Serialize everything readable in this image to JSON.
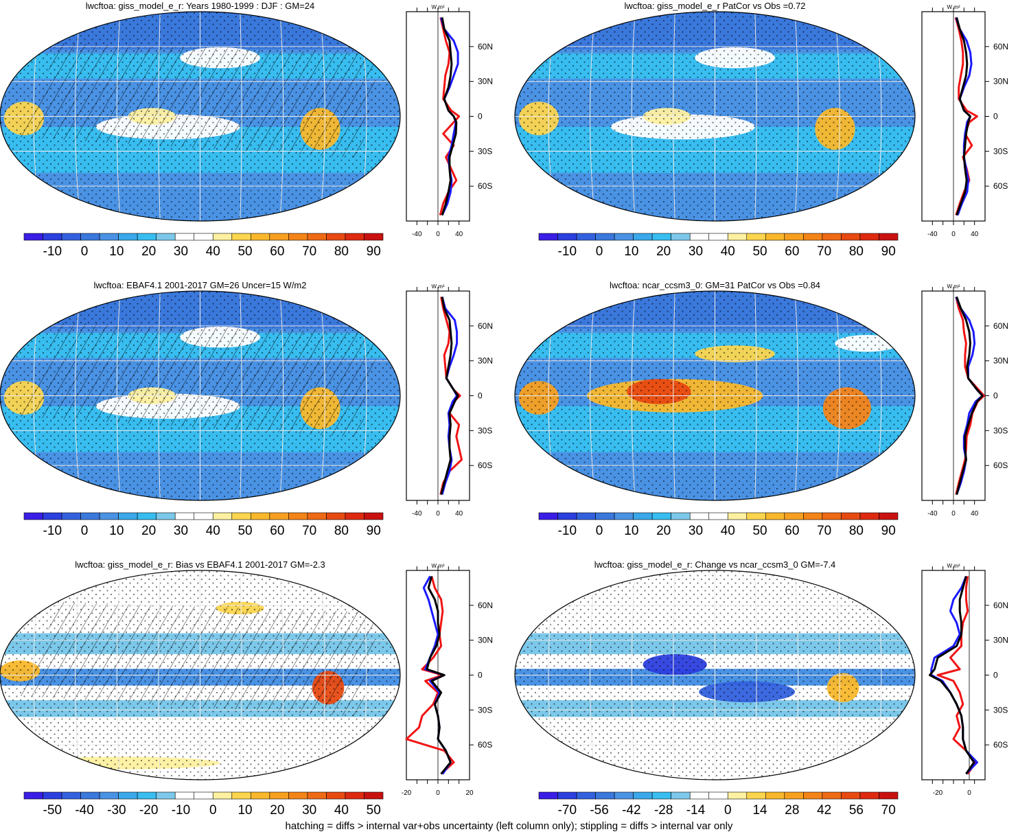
{
  "caption": "hatching = diffs > internal var+obs uncertainty (left column only); stippling = diffs > internal var only",
  "colors": {
    "zonal_black": "#000000",
    "zonal_blue": "#1a1aff",
    "zonal_red": "#f01414",
    "full_scale": [
      "#3a1ee6",
      "#2c3fdf",
      "#3361de",
      "#3a78dc",
      "#4a92e4",
      "#3aa8ea",
      "#38bdf0",
      "#7cc8ea",
      "#ffffff",
      "#ffffff",
      "#fdf0a0",
      "#fbd54e",
      "#f9b82b",
      "#f7a020",
      "#f48418",
      "#ef6a15",
      "#e84a12",
      "#de2a10",
      "#c91210"
    ]
  },
  "chart_data": [
    {
      "id": "p1",
      "type": "heatmap",
      "title": "lwcftoa: giss_model_e_r: Years 1980-1999 : DJF : GM=24",
      "colorbar_labels": [
        "-10",
        "0",
        "10",
        "20",
        "30",
        "40",
        "50",
        "60",
        "70",
        "80",
        "90"
      ],
      "hatching": true,
      "profile": {
        "y_ticks": [
          "60N",
          "30N",
          "0",
          "30S",
          "60S"
        ],
        "x_ticks": [
          "-40",
          "0",
          "40"
        ],
        "xlim": [
          -60,
          60
        ],
        "unit": "W m²",
        "lat": [
          85,
          75,
          65,
          55,
          45,
          35,
          25,
          15,
          5,
          0,
          -5,
          -15,
          -25,
          -35,
          -45,
          -55,
          -65,
          -75,
          -85
        ],
        "series": [
          {
            "color": "black",
            "values": [
              8,
              12,
              22,
              24,
              26,
              24,
              20,
              12,
              20,
              30,
              35,
              34,
              28,
              22,
              22,
              24,
              20,
              15,
              8
            ]
          },
          {
            "color": "blue",
            "values": [
              6,
              12,
              30,
              38,
              38,
              30,
              22,
              12,
              20,
              30,
              34,
              30,
              26,
              20,
              22,
              26,
              24,
              18,
              8
            ]
          },
          {
            "color": "red",
            "values": [
              5,
              10,
              15,
              22,
              20,
              14,
              12,
              10,
              25,
              40,
              30,
              10,
              30,
              15,
              25,
              35,
              20,
              10,
              4
            ]
          }
        ]
      }
    },
    {
      "id": "p2",
      "type": "heatmap",
      "title": "lwcftoa: giss_model_e_r PatCor vs Obs =0.72",
      "colorbar_labels": [
        "-10",
        "0",
        "10",
        "20",
        "30",
        "40",
        "50",
        "60",
        "70",
        "80",
        "90"
      ],
      "hatching": false,
      "profile": {
        "y_ticks": [
          "60N",
          "30N",
          "0",
          "30S",
          "60S"
        ],
        "x_ticks": [
          "-40",
          "0",
          "40"
        ],
        "xlim": [
          -60,
          60
        ],
        "unit": "W m²",
        "lat": [
          85,
          75,
          65,
          55,
          45,
          35,
          25,
          15,
          5,
          0,
          -5,
          -15,
          -25,
          -35,
          -45,
          -55,
          -65,
          -75,
          -85
        ],
        "series": [
          {
            "color": "black",
            "values": [
              6,
              12,
              20,
              24,
              26,
              24,
              18,
              12,
              20,
              32,
              28,
              24,
              22,
              20,
              22,
              25,
              22,
              14,
              6
            ]
          },
          {
            "color": "blue",
            "values": [
              5,
              12,
              25,
              32,
              34,
              30,
              20,
              12,
              20,
              32,
              26,
              22,
              20,
              20,
              24,
              28,
              26,
              16,
              8
            ]
          },
          {
            "color": "red",
            "values": [
              4,
              10,
              15,
              18,
              18,
              14,
              10,
              10,
              25,
              45,
              30,
              22,
              35,
              18,
              25,
              30,
              20,
              12,
              5
            ]
          }
        ]
      }
    },
    {
      "id": "p3",
      "type": "heatmap",
      "title": "lwcftoa: EBAF4.1 2001-2017 GM=26 Uncer=15 W/m2",
      "colorbar_labels": [
        "-10",
        "0",
        "10",
        "20",
        "30",
        "40",
        "50",
        "60",
        "70",
        "80",
        "90"
      ],
      "hatching": true,
      "profile": {
        "y_ticks": [
          "60N",
          "30N",
          "0",
          "30S",
          "60S"
        ],
        "x_ticks": [
          "-40",
          "0",
          "40"
        ],
        "xlim": [
          -60,
          60
        ],
        "unit": "W m²",
        "lat": [
          85,
          75,
          65,
          55,
          45,
          35,
          25,
          15,
          5,
          0,
          -5,
          -15,
          -25,
          -35,
          -45,
          -55,
          -65,
          -75,
          -85
        ],
        "series": [
          {
            "color": "black",
            "values": [
              8,
              12,
              22,
              24,
              26,
              24,
              20,
              16,
              30,
              38,
              32,
              22,
              24,
              22,
              22,
              24,
              18,
              12,
              6
            ]
          },
          {
            "color": "blue",
            "values": [
              8,
              14,
              32,
              36,
              36,
              30,
              22,
              16,
              30,
              36,
              28,
              20,
              22,
              20,
              22,
              26,
              22,
              14,
              8
            ]
          },
          {
            "color": "red",
            "values": [
              6,
              10,
              16,
              22,
              20,
              12,
              14,
              16,
              30,
              42,
              30,
              22,
              40,
              35,
              40,
              45,
              22,
              10,
              5
            ]
          }
        ]
      }
    },
    {
      "id": "p4",
      "type": "heatmap",
      "title": "lwcftoa: ncar_ccsm3_0: GM=31 PatCor vs Obs =0.84",
      "colorbar_labels": [
        "-10",
        "0",
        "10",
        "20",
        "30",
        "40",
        "50",
        "60",
        "70",
        "80",
        "90"
      ],
      "hatching": false,
      "profile": {
        "y_ticks": [
          "60N",
          "30N",
          "0",
          "30S",
          "60S"
        ],
        "x_ticks": [
          "-40",
          "0",
          "40"
        ],
        "xlim": [
          -60,
          60
        ],
        "unit": "W m²",
        "lat": [
          85,
          75,
          65,
          55,
          45,
          35,
          25,
          15,
          5,
          0,
          -5,
          -15,
          -25,
          -35,
          -45,
          -55,
          -65,
          -75,
          -85
        ],
        "series": [
          {
            "color": "black",
            "values": [
              6,
              14,
              24,
              30,
              32,
              30,
              26,
              28,
              45,
              55,
              45,
              35,
              28,
              22,
              22,
              24,
              18,
              12,
              6
            ]
          },
          {
            "color": "blue",
            "values": [
              5,
              14,
              30,
              38,
              40,
              36,
              28,
              28,
              45,
              55,
              42,
              30,
              26,
              20,
              20,
              24,
              20,
              14,
              6
            ]
          },
          {
            "color": "red",
            "values": [
              5,
              10,
              18,
              20,
              24,
              22,
              22,
              28,
              48,
              58,
              46,
              36,
              32,
              25,
              24,
              22,
              16,
              10,
              5
            ]
          }
        ]
      }
    },
    {
      "id": "p5",
      "type": "heatmap",
      "title": "lwcftoa: giss_model_e_r: Bias vs EBAF4.1 2001-2017 GM=-2.3",
      "colorbar_labels": [
        "-50",
        "-40",
        "-30",
        "-20",
        "-10",
        "0",
        "10",
        "20",
        "30",
        "40",
        "50"
      ],
      "hatching": true,
      "profile": {
        "y_ticks": [
          "60N",
          "30N",
          "0",
          "30S",
          "60S"
        ],
        "x_ticks": [
          "-20",
          "0",
          "20"
        ],
        "xlim": [
          -20,
          20
        ],
        "unit": "W m²",
        "lat": [
          85,
          75,
          65,
          55,
          45,
          35,
          25,
          15,
          5,
          0,
          -5,
          -15,
          -25,
          -35,
          -45,
          -55,
          -65,
          -75,
          -85
        ],
        "series": [
          {
            "color": "black",
            "values": [
              -4,
              -6,
              -2,
              0,
              0,
              1,
              -1,
              -5,
              -7,
              4,
              -4,
              2,
              -2,
              0,
              1,
              0,
              5,
              8,
              2
            ]
          },
          {
            "color": "blue",
            "values": [
              -5,
              -9,
              -6,
              -4,
              -2,
              0,
              -2,
              -5,
              -8,
              4,
              -5,
              1,
              -2,
              0,
              1,
              0,
              5,
              8,
              3
            ]
          },
          {
            "color": "red",
            "values": [
              -4,
              -2,
              2,
              3,
              2,
              1,
              2,
              -3,
              -10,
              3,
              -8,
              0,
              -3,
              -10,
              -12,
              -20,
              4,
              10,
              2
            ]
          }
        ]
      }
    },
    {
      "id": "p6",
      "type": "heatmap",
      "title": "lwcftoa: giss_model_e_r: Change vs ncar_ccsm3_0 GM=-7.4",
      "colorbar_labels": [
        "-70",
        "-56",
        "-42",
        "-28",
        "-14",
        "0",
        "14",
        "28",
        "42",
        "56",
        "70"
      ],
      "hatching": false,
      "profile": {
        "y_ticks": [
          "60N",
          "30N",
          "0",
          "30S",
          "60S"
        ],
        "x_ticks": [
          "-20",
          "0"
        ],
        "xlim": [
          -30,
          10
        ],
        "unit": "W m²",
        "lat": [
          85,
          75,
          65,
          55,
          45,
          35,
          25,
          15,
          5,
          0,
          -5,
          -15,
          -25,
          -35,
          -45,
          -55,
          -65,
          -75,
          -85
        ],
        "series": [
          {
            "color": "black",
            "values": [
              -2,
              -4,
              -6,
              -6,
              -5,
              -5,
              -8,
              -20,
              -22,
              -25,
              -18,
              -12,
              -8,
              -5,
              -4,
              -4,
              -2,
              3,
              -2
            ]
          },
          {
            "color": "blue",
            "values": [
              -2,
              -5,
              -10,
              -12,
              -8,
              -6,
              -10,
              -22,
              -24,
              -24,
              -17,
              -12,
              -8,
              -5,
              -4,
              -4,
              -2,
              5,
              -2
            ]
          },
          {
            "color": "red",
            "values": [
              -1,
              -2,
              -2,
              -1,
              -4,
              -5,
              -5,
              -12,
              -6,
              -20,
              -10,
              -6,
              -4,
              -8,
              -6,
              -10,
              -2,
              4,
              -1
            ]
          }
        ]
      }
    }
  ]
}
